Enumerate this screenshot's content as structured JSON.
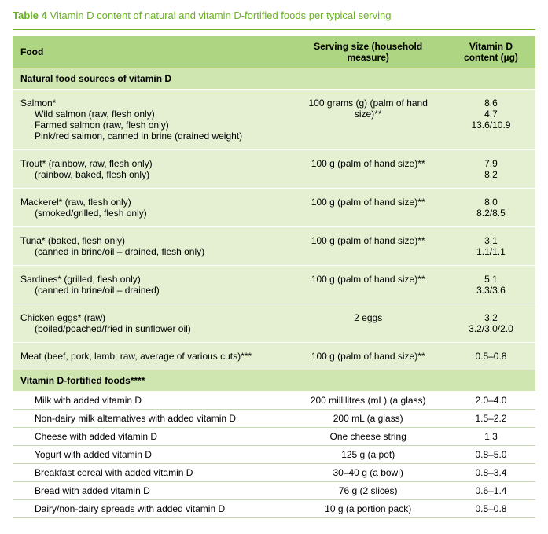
{
  "title_bold": "Table 4",
  "title_rest": " Vitamin D content of natural and vitamin D-fortified foods per typical serving",
  "headers": {
    "food": "Food",
    "serving": "Serving size (household measure)",
    "vitd": "Vitamin D content (µg)"
  },
  "section_natural": "Natural food sources of vitamin D",
  "section_fortified": "Vitamin D-fortified foods****",
  "natural_groups": [
    {
      "main": "Salmon*",
      "serving": "100 grams (g) (palm of hand size)**",
      "subs": [
        {
          "label": "Wild salmon (raw, flesh only)",
          "vitd": "8.6"
        },
        {
          "label": "Farmed salmon (raw, flesh only)",
          "vitd": "4.7"
        },
        {
          "label": "Pink/red salmon, canned in brine (drained weight)",
          "vitd": "13.6/10.9"
        }
      ]
    },
    {
      "main": "Trout* (rainbow, raw, flesh only)",
      "serving": "100 g (palm of hand size)**",
      "main_vitd": "7.9",
      "subs": [
        {
          "label": "(rainbow, baked, flesh only)",
          "vitd": "8.2"
        }
      ]
    },
    {
      "main": "Mackerel* (raw, flesh only)",
      "serving": "100 g (palm of hand size)**",
      "main_vitd": "8.0",
      "subs": [
        {
          "label": "(smoked/grilled, flesh only)",
          "vitd": "8.2/8.5"
        }
      ]
    },
    {
      "main": "Tuna* (baked, flesh only)",
      "serving": "100 g (palm of hand size)**",
      "main_vitd": "3.1",
      "subs": [
        {
          "label": "(canned in brine/oil – drained, flesh only)",
          "vitd": "1.1/1.1"
        }
      ]
    },
    {
      "main": "Sardines* (grilled, flesh only)",
      "serving": "100 g (palm of hand size)**",
      "main_vitd": "5.1",
      "subs": [
        {
          "label": "(canned in brine/oil – drained)",
          "vitd": "3.3/3.6"
        }
      ]
    },
    {
      "main": "Chicken eggs* (raw)",
      "serving": "2 eggs",
      "main_vitd": "3.2",
      "subs": [
        {
          "label": "(boiled/poached/fried in sunflower oil)",
          "vitd": "3.2/3.0/2.0"
        }
      ]
    },
    {
      "main": "Meat (beef, pork, lamb; raw, average of various cuts)***",
      "serving": "100 g (palm of hand size)**",
      "main_vitd": "0.5–0.8",
      "subs": []
    }
  ],
  "fortified_rows": [
    {
      "food": "Milk with added vitamin D",
      "serving": "200 millilitres (mL) (a glass)",
      "vitd": "2.0–4.0"
    },
    {
      "food": "Non-dairy milk alternatives with added vitamin D",
      "serving": "200 mL (a glass)",
      "vitd": "1.5–2.2"
    },
    {
      "food": "Cheese with added vitamin D",
      "serving": "One cheese string",
      "vitd": "1.3"
    },
    {
      "food": "Yogurt with added vitamin D",
      "serving": "125 g (a pot)",
      "vitd": "0.8–5.0"
    },
    {
      "food": "Breakfast cereal with added vitamin D",
      "serving": "30–40 g (a bowl)",
      "vitd": "0.8–3.4"
    },
    {
      "food": "Bread with added vitamin D",
      "serving": "76 g (2 slices)",
      "vitd": "0.6–1.4"
    },
    {
      "food": "Dairy/non-dairy spreads with added vitamin D",
      "serving": "10 g (a portion pack)",
      "vitd": "0.5–0.8"
    }
  ],
  "colors": {
    "accent": "#6ab023",
    "header_bg": "#aed581",
    "section_bg": "#cfe6b0",
    "group_bg": "#e5f0d3"
  }
}
